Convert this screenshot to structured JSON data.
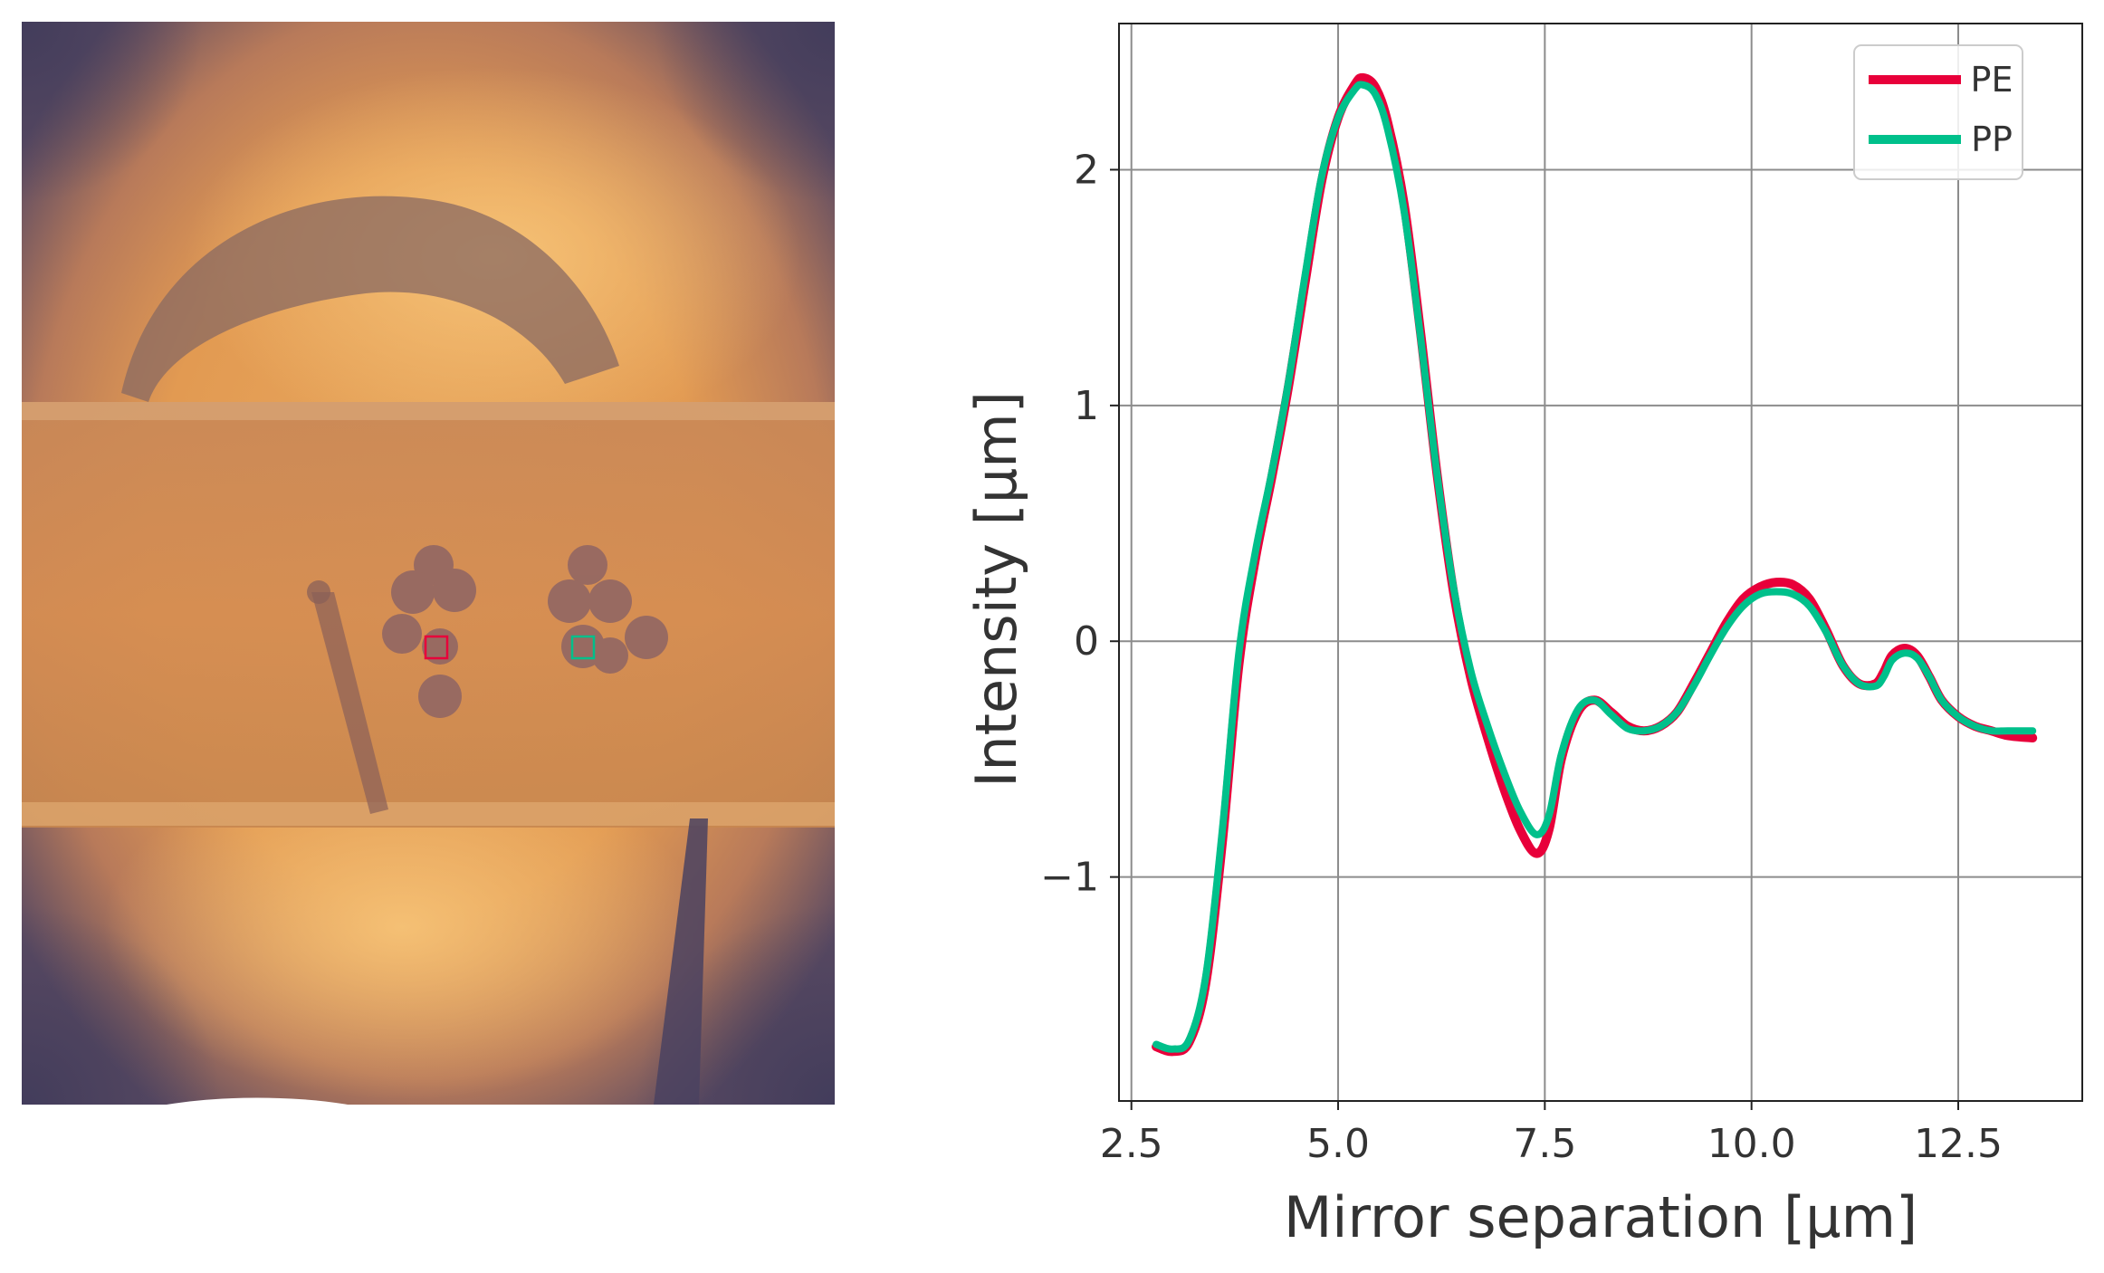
{
  "chart_data": [
    {
      "type": "image",
      "markers": [
        {
          "name": "PE",
          "color": "#e8003a"
        },
        {
          "name": "PP",
          "color": "#00c08b"
        }
      ]
    },
    {
      "type": "line",
      "xlabel": "Mirror separation [μm]",
      "ylabel": "Intensity [μm]",
      "xlim": [
        2.35,
        14.0
      ],
      "ylim": [
        -1.95,
        2.62
      ],
      "xticks": [
        2.5,
        5.0,
        7.5,
        10.0,
        12.5
      ],
      "xtick_labels": [
        "2.5",
        "5.0",
        "7.5",
        "10.0",
        "12.5"
      ],
      "yticks": [
        -1,
        0,
        1,
        2
      ],
      "ytick_labels": [
        "−1",
        "0",
        "1",
        "2"
      ],
      "grid": true,
      "legend_position": "top-right",
      "series": [
        {
          "name": "PE",
          "color": "#e8003a",
          "x": [
            2.8,
            3.0,
            3.2,
            3.4,
            3.6,
            3.8,
            4.0,
            4.2,
            4.4,
            4.6,
            4.8,
            5.0,
            5.2,
            5.3,
            5.45,
            5.6,
            5.8,
            6.0,
            6.2,
            6.4,
            6.6,
            6.8,
            7.0,
            7.2,
            7.4,
            7.55,
            7.7,
            7.9,
            8.1,
            8.3,
            8.5,
            8.7,
            8.9,
            9.1,
            9.3,
            9.5,
            9.7,
            9.9,
            10.1,
            10.3,
            10.5,
            10.7,
            10.9,
            11.1,
            11.3,
            11.5,
            11.6,
            11.7,
            11.85,
            12.0,
            12.15,
            12.3,
            12.5,
            12.7,
            12.9,
            13.1,
            13.4
          ],
          "y": [
            -1.72,
            -1.74,
            -1.7,
            -1.45,
            -0.85,
            -0.1,
            0.35,
            0.7,
            1.08,
            1.52,
            1.95,
            2.22,
            2.36,
            2.39,
            2.35,
            2.2,
            1.85,
            1.3,
            0.7,
            0.2,
            -0.15,
            -0.4,
            -0.62,
            -0.8,
            -0.9,
            -0.8,
            -0.5,
            -0.3,
            -0.25,
            -0.3,
            -0.36,
            -0.38,
            -0.36,
            -0.3,
            -0.18,
            -0.05,
            0.08,
            0.18,
            0.23,
            0.25,
            0.24,
            0.18,
            0.05,
            -0.1,
            -0.18,
            -0.18,
            -0.13,
            -0.06,
            -0.03,
            -0.06,
            -0.15,
            -0.25,
            -0.32,
            -0.36,
            -0.38,
            -0.4,
            -0.41
          ]
        },
        {
          "name": "PP",
          "color": "#00c08b",
          "x": [
            2.8,
            3.0,
            3.2,
            3.4,
            3.6,
            3.8,
            4.0,
            4.2,
            4.4,
            4.6,
            4.8,
            5.0,
            5.2,
            5.3,
            5.45,
            5.6,
            5.8,
            6.0,
            6.2,
            6.4,
            6.6,
            6.8,
            7.0,
            7.2,
            7.4,
            7.55,
            7.7,
            7.9,
            8.1,
            8.3,
            8.5,
            8.7,
            8.9,
            9.1,
            9.3,
            9.5,
            9.7,
            9.9,
            10.1,
            10.3,
            10.5,
            10.7,
            10.9,
            11.1,
            11.3,
            11.5,
            11.6,
            11.7,
            11.85,
            12.0,
            12.15,
            12.3,
            12.5,
            12.7,
            12.9,
            13.1,
            13.4
          ],
          "y": [
            -1.71,
            -1.73,
            -1.69,
            -1.42,
            -0.8,
            -0.05,
            0.38,
            0.72,
            1.1,
            1.55,
            1.97,
            2.22,
            2.34,
            2.36,
            2.32,
            2.17,
            1.82,
            1.28,
            0.7,
            0.22,
            -0.12,
            -0.35,
            -0.55,
            -0.72,
            -0.82,
            -0.74,
            -0.48,
            -0.29,
            -0.25,
            -0.31,
            -0.37,
            -0.38,
            -0.36,
            -0.3,
            -0.19,
            -0.06,
            0.06,
            0.15,
            0.2,
            0.21,
            0.2,
            0.15,
            0.04,
            -0.1,
            -0.18,
            -0.19,
            -0.15,
            -0.08,
            -0.05,
            -0.07,
            -0.15,
            -0.25,
            -0.32,
            -0.36,
            -0.38,
            -0.38,
            -0.38
          ]
        }
      ]
    }
  ]
}
